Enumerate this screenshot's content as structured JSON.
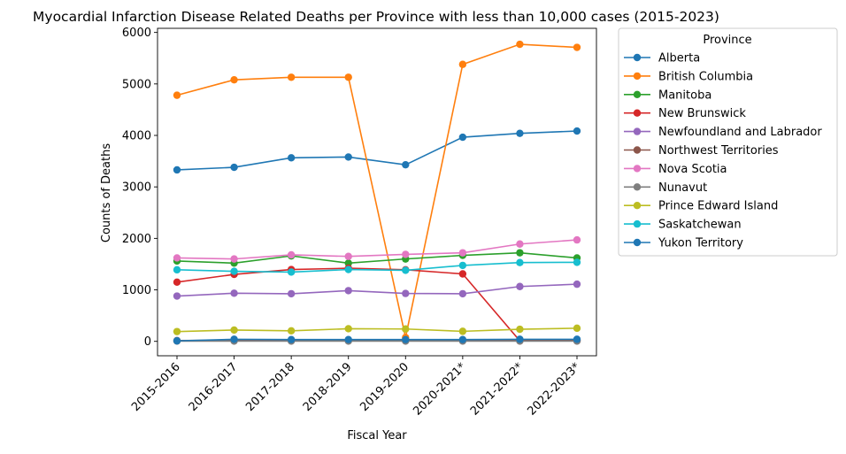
{
  "chart_data": {
    "type": "line",
    "title": "Myocardial Infarction Disease Related Deaths per Province with less than 10,000 cases (2015-2023)",
    "xlabel": "Fiscal Year",
    "ylabel": "Counts of Deaths",
    "categories": [
      "2015-2016",
      "2016-2017",
      "2017-2018",
      "2018-2019",
      "2019-2020",
      "2020-2021*",
      "2021-2022*",
      "2022-2023*"
    ],
    "ylim": [
      -280,
      6080
    ],
    "yticks": [
      0,
      1000,
      2000,
      3000,
      4000,
      5000,
      6000
    ],
    "legend_title": "Province",
    "legend_position": "outside-right",
    "grid": false,
    "series": [
      {
        "name": "Alberta",
        "color": "#1f77b4",
        "values": [
          3330,
          3380,
          3565,
          3580,
          3430,
          3965,
          4040,
          4085
        ]
      },
      {
        "name": "British Columbia",
        "color": "#ff7f0e",
        "values": [
          4780,
          5080,
          5130,
          5130,
          75,
          5380,
          5770,
          5710
        ]
      },
      {
        "name": "Manitoba",
        "color": "#2ca02c",
        "values": [
          1560,
          1520,
          1660,
          1520,
          1600,
          1670,
          1720,
          1620
        ]
      },
      {
        "name": "New Brunswick",
        "color": "#d62728",
        "values": [
          1150,
          1300,
          1395,
          1420,
          1390,
          1310,
          10,
          10
        ]
      },
      {
        "name": "Newfoundland and Labrador",
        "color": "#9467bd",
        "values": [
          880,
          935,
          925,
          985,
          930,
          925,
          1065,
          1110
        ]
      },
      {
        "name": "Northwest Territories",
        "color": "#8c564b",
        "values": [
          15,
          20,
          20,
          20,
          20,
          20,
          20,
          20
        ]
      },
      {
        "name": "Nova Scotia",
        "color": "#e377c2",
        "values": [
          1620,
          1600,
          1680,
          1650,
          1690,
          1720,
          1890,
          1970
        ]
      },
      {
        "name": "Nunavut",
        "color": "#7f7f7f",
        "values": [
          5,
          5,
          5,
          5,
          5,
          5,
          5,
          5
        ]
      },
      {
        "name": "Prince Edward Island",
        "color": "#bcbd22",
        "values": [
          190,
          220,
          205,
          245,
          240,
          195,
          235,
          255
        ]
      },
      {
        "name": "Saskatchewan",
        "color": "#17becf",
        "values": [
          1390,
          1360,
          1345,
          1395,
          1380,
          1475,
          1530,
          1535
        ]
      },
      {
        "name": "Yukon Territory",
        "color": "#1f77b4",
        "values": [
          10,
          40,
          35,
          35,
          35,
          35,
          40,
          40
        ]
      }
    ]
  }
}
